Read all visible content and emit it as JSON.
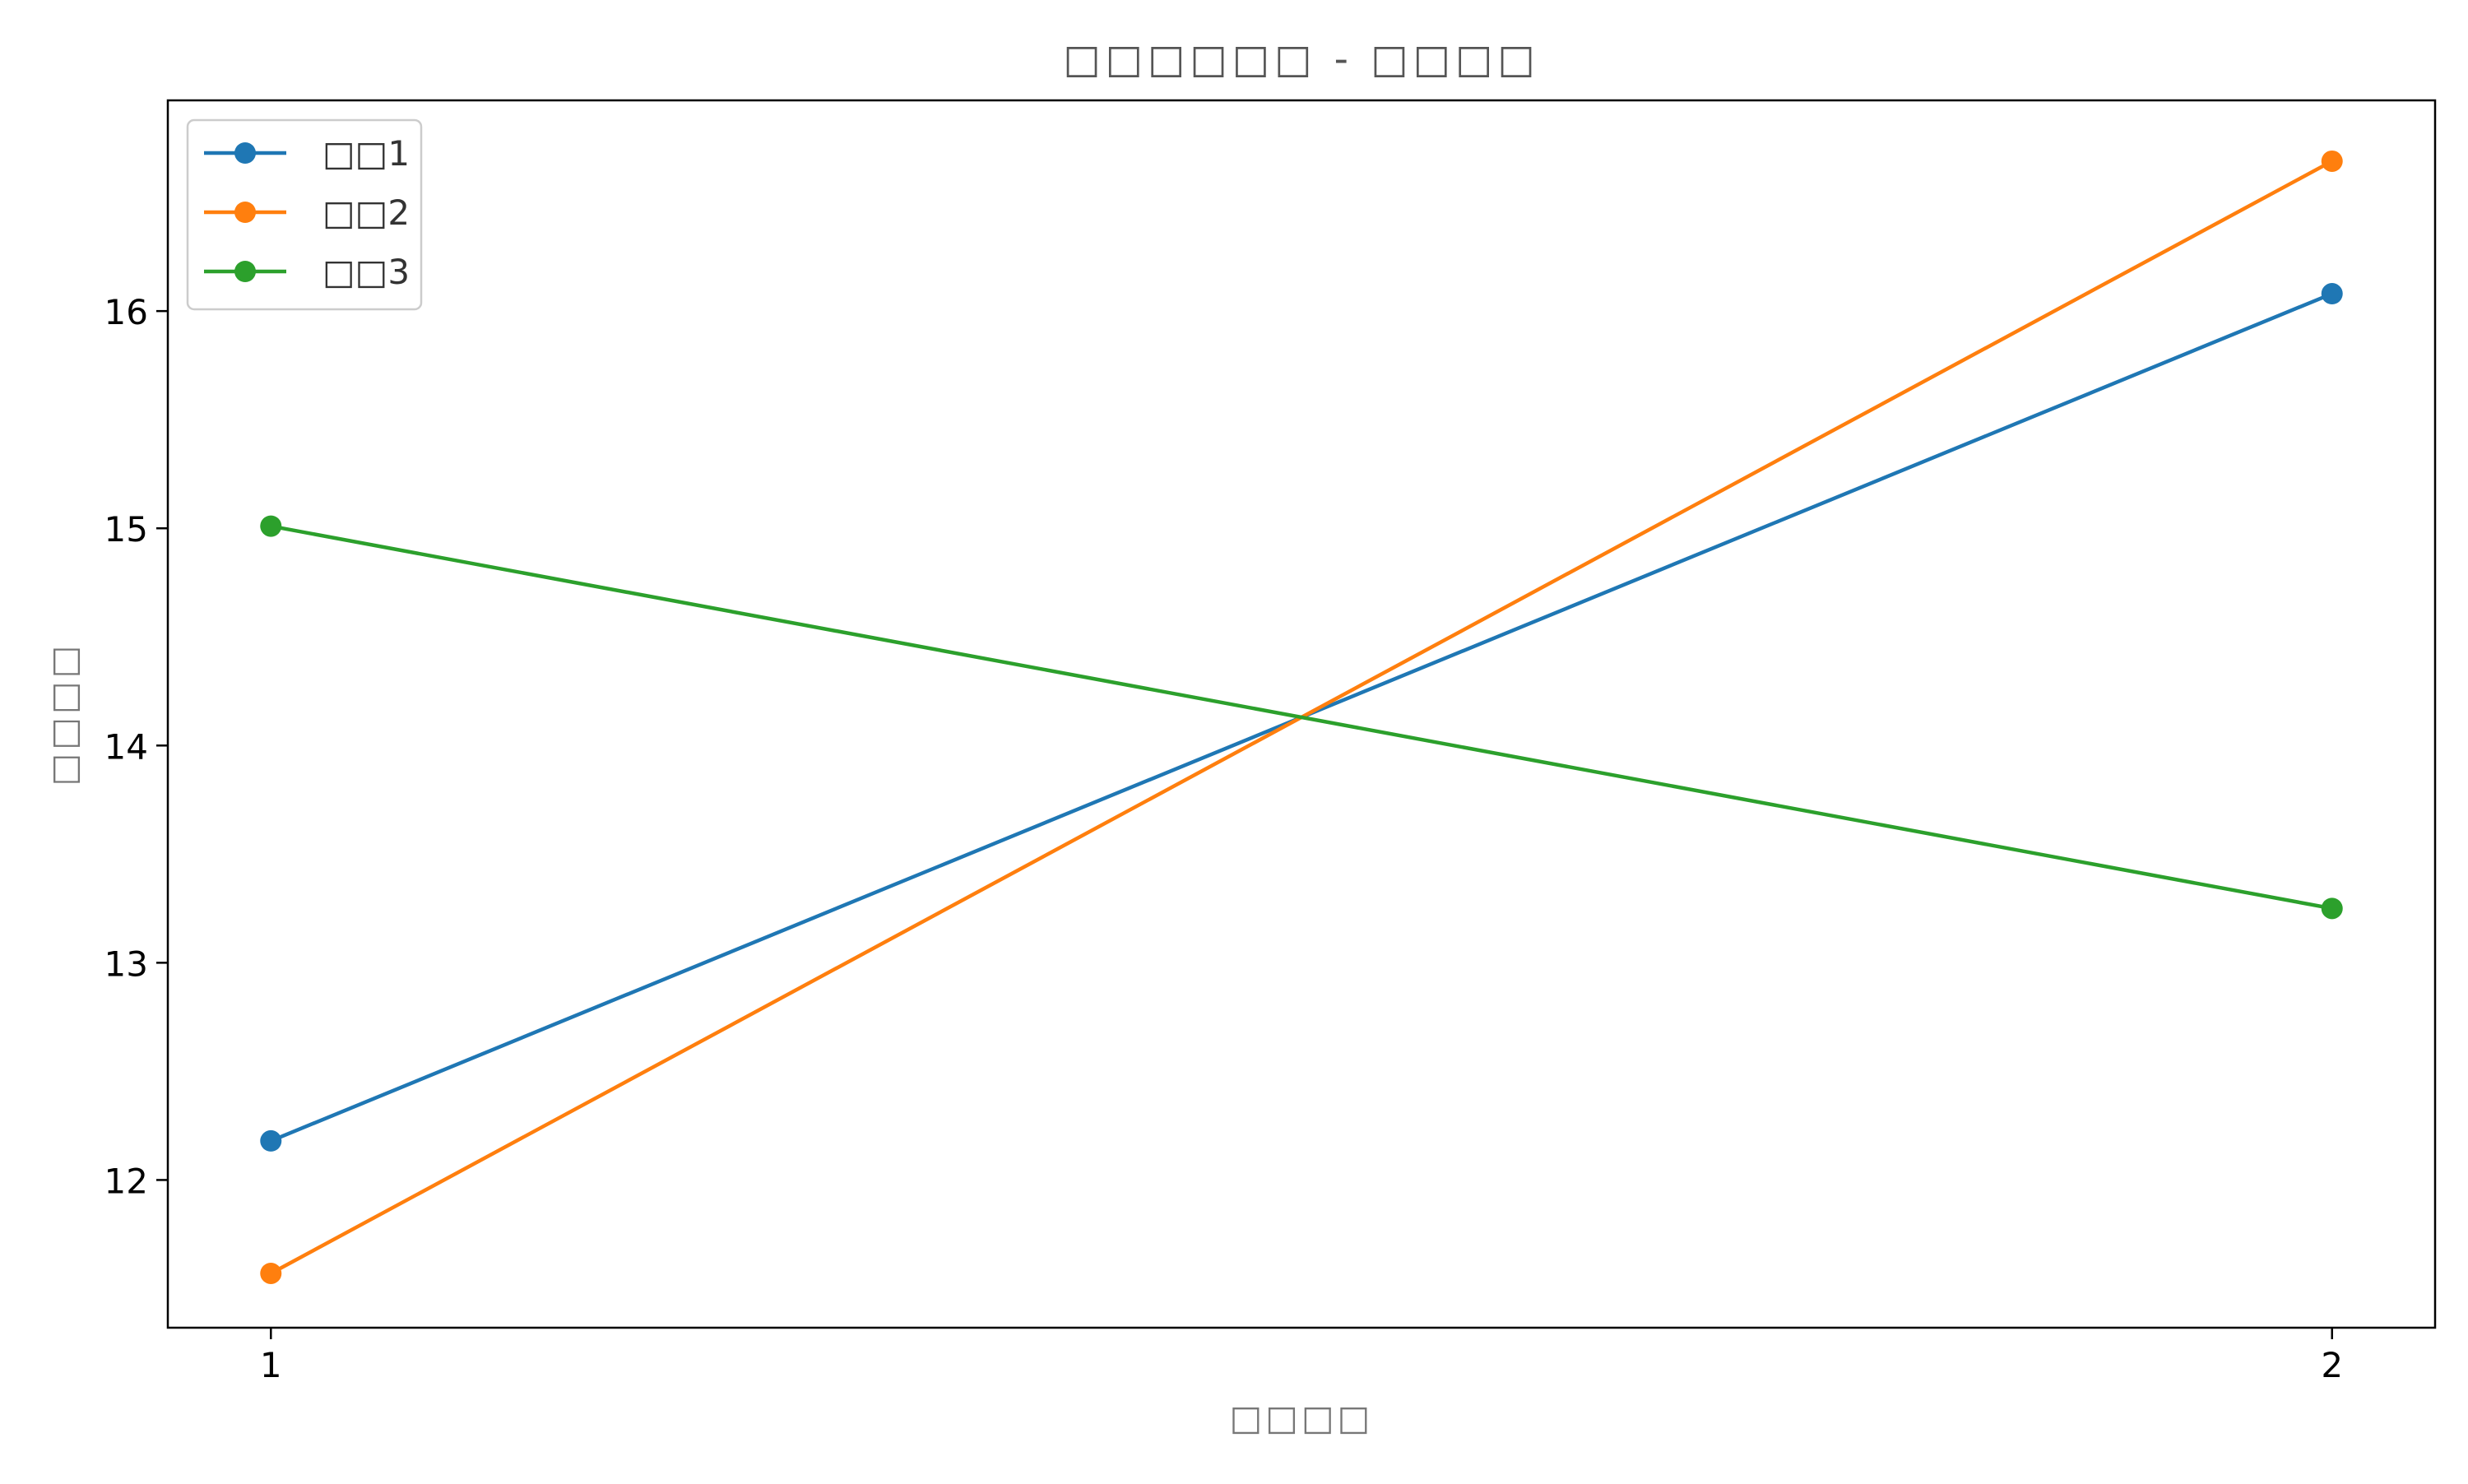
{
  "chart_data": {
    "type": "line",
    "title": "□□□□□□ - □□□□",
    "xlabel": "□□□□",
    "ylabel": "□□□□",
    "x": [
      1,
      2
    ],
    "xlim": [
      0.95,
      2.05
    ],
    "ylim": [
      11.32,
      16.97
    ],
    "x_ticks": [
      1,
      2
    ],
    "y_ticks": [
      12,
      13,
      14,
      15,
      16
    ],
    "grid": false,
    "legend_position": "top-left",
    "series": [
      {
        "name": "□□1",
        "color": "#1f77b4",
        "values": [
          12.18,
          16.08
        ]
      },
      {
        "name": "□□2",
        "color": "#ff7f0e",
        "values": [
          11.57,
          16.69
        ]
      },
      {
        "name": "□□3",
        "color": "#2ca02c",
        "values": [
          15.01,
          13.25
        ]
      }
    ]
  }
}
